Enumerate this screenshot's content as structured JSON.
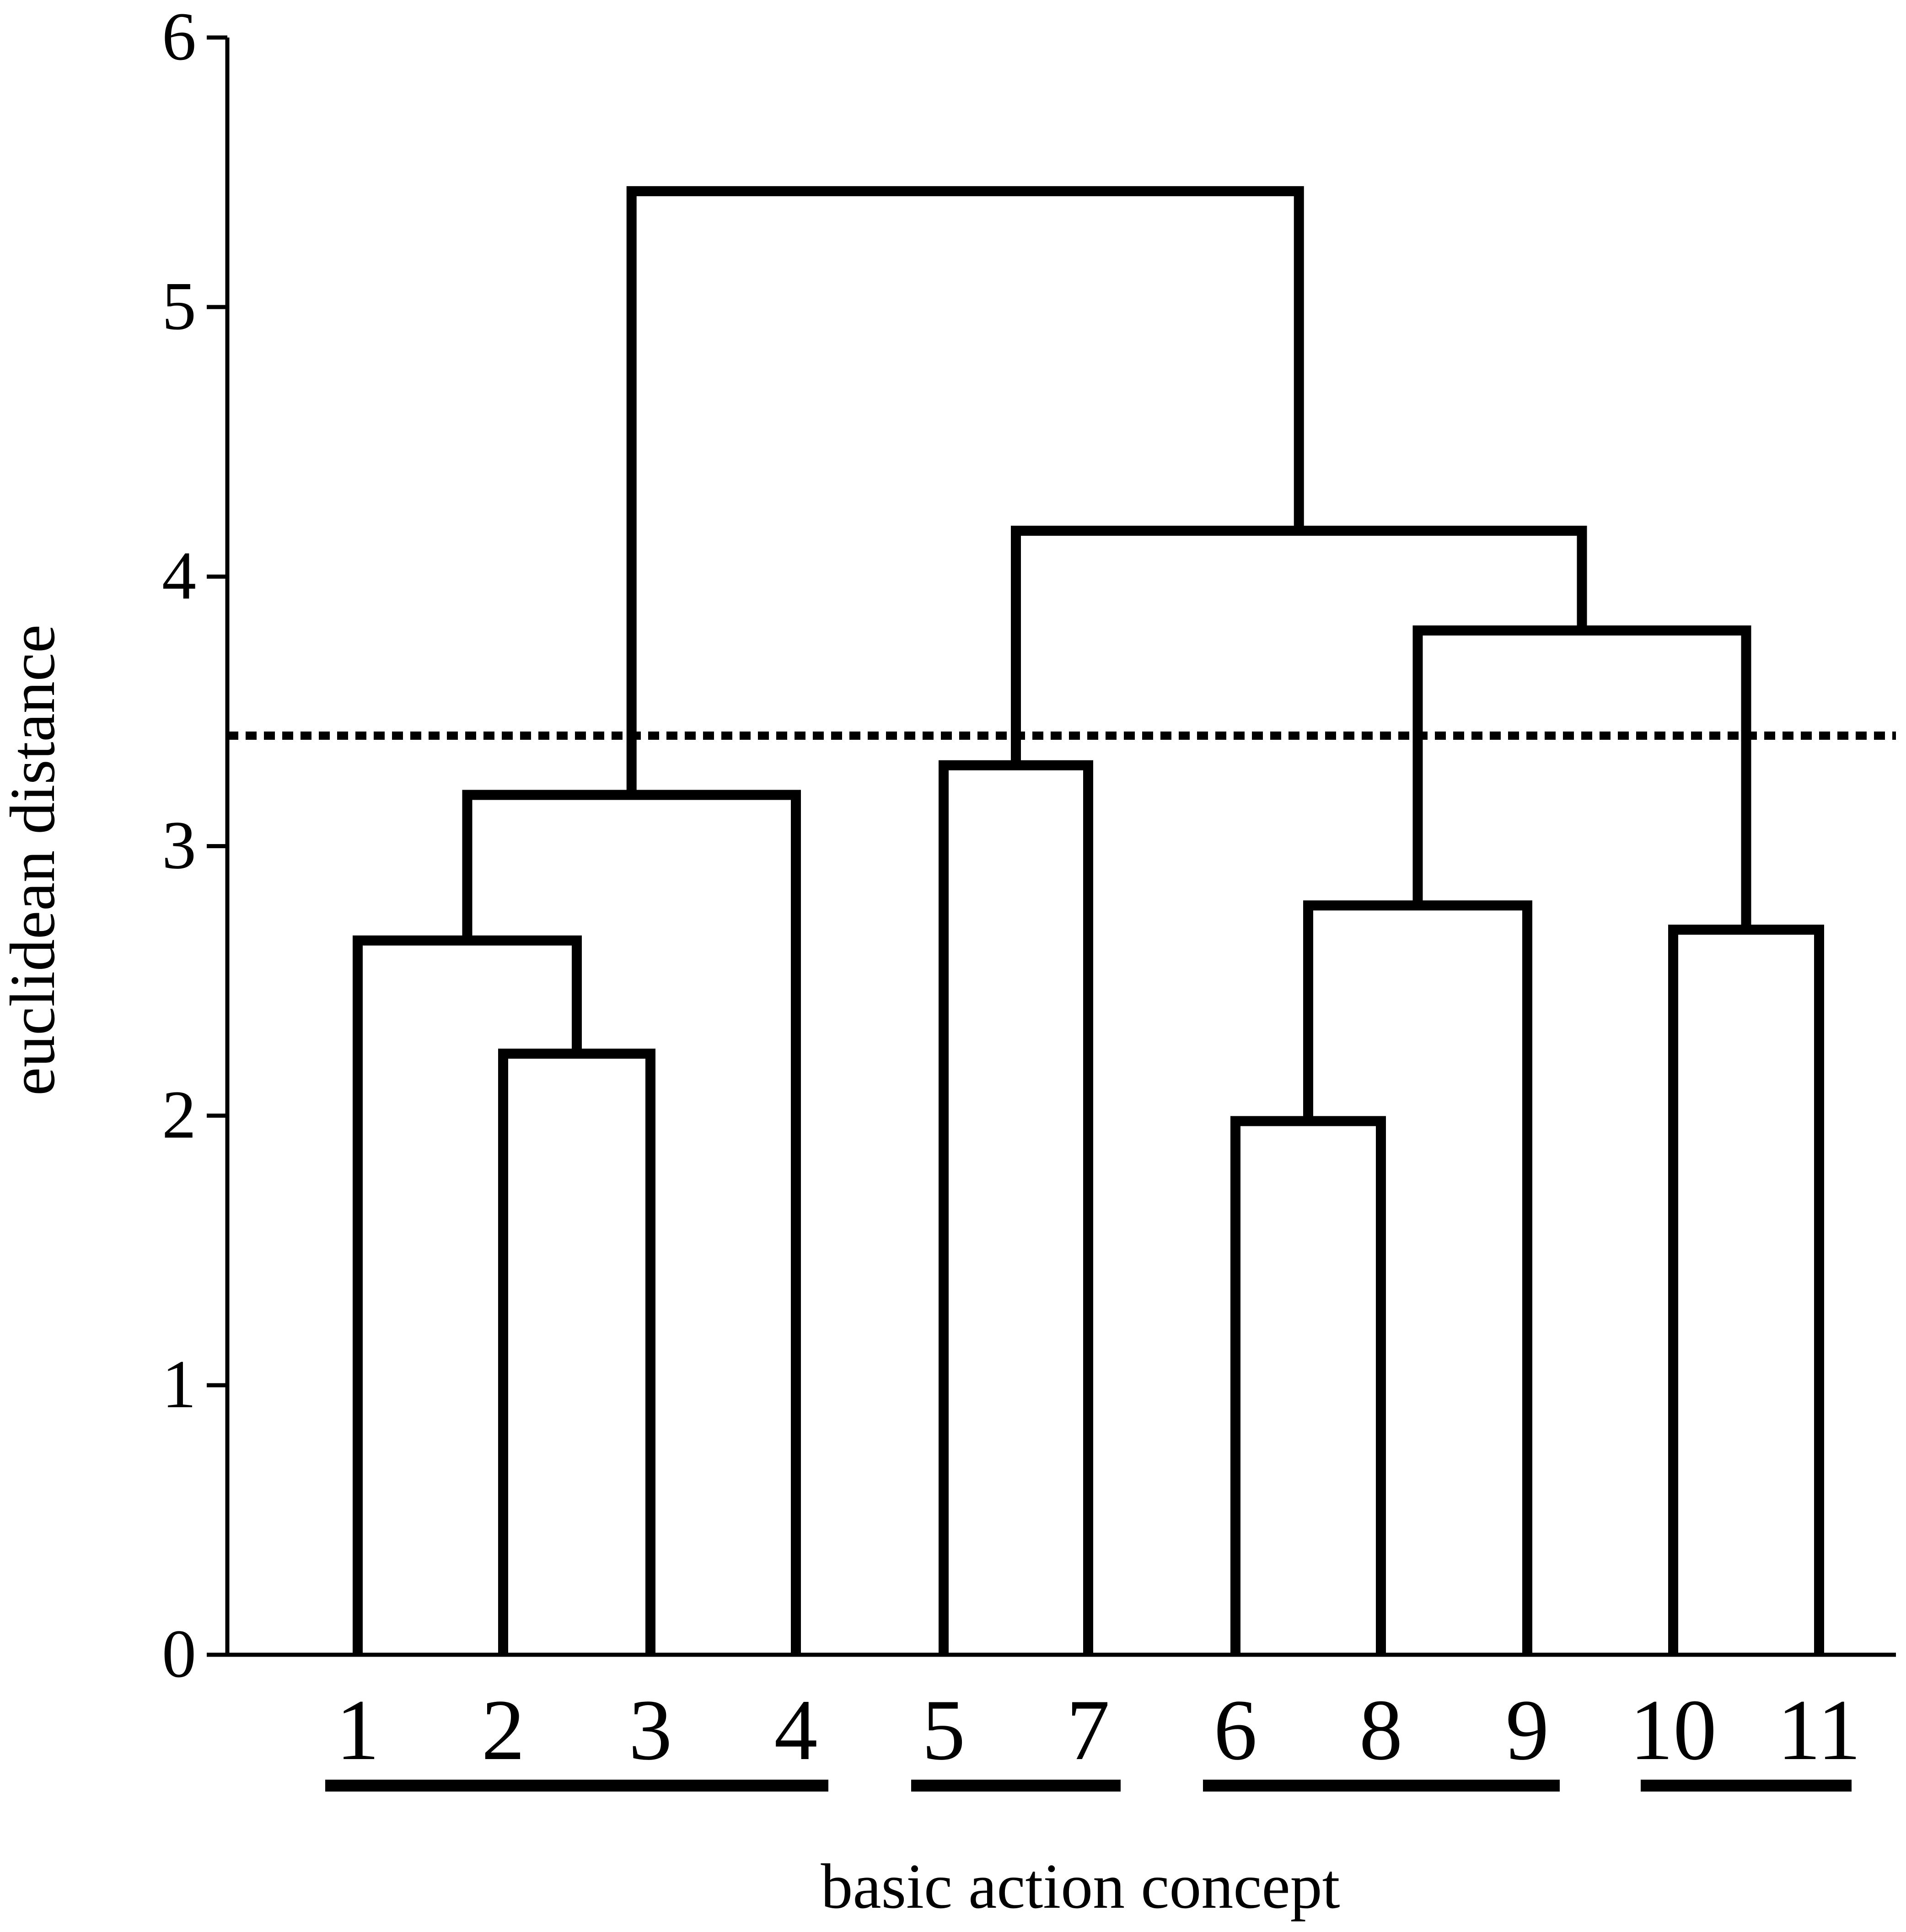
{
  "chart_data": {
    "type": "dendrogram",
    "title": "",
    "xlabel": "basic action concept",
    "ylabel": "euclidean distance",
    "ylim": [
      0,
      6
    ],
    "yticks": [
      0,
      1,
      2,
      3,
      4,
      5,
      6
    ],
    "leaf_order": [
      "1",
      "2",
      "3",
      "4",
      "5",
      "7",
      "6",
      "8",
      "9",
      "10",
      "11"
    ],
    "merges": [
      {
        "id": "m1",
        "children": [
          "6",
          "8"
        ],
        "height": 1.98
      },
      {
        "id": "m2",
        "children": [
          "2",
          "3"
        ],
        "height": 2.23
      },
      {
        "id": "m3",
        "children": [
          "1",
          "m2"
        ],
        "height": 2.65
      },
      {
        "id": "m4",
        "children": [
          "10",
          "11"
        ],
        "height": 2.69
      },
      {
        "id": "m5",
        "children": [
          "m1",
          "9"
        ],
        "height": 2.78
      },
      {
        "id": "m6",
        "children": [
          "m3",
          "4"
        ],
        "height": 3.19
      },
      {
        "id": "m7",
        "children": [
          "5",
          "7"
        ],
        "height": 3.3
      },
      {
        "id": "m8",
        "children": [
          "m5",
          "m4"
        ],
        "height": 3.8
      },
      {
        "id": "m9",
        "children": [
          "m7",
          "m8"
        ],
        "height": 4.17
      },
      {
        "id": "m10",
        "children": [
          "m6",
          "m9"
        ],
        "height": 5.43
      }
    ],
    "cutoff": 3.41,
    "clusters": [
      [
        "1",
        "2",
        "3",
        "4"
      ],
      [
        "5",
        "7"
      ],
      [
        "6",
        "8",
        "9"
      ],
      [
        "10",
        "11"
      ]
    ],
    "grid": false,
    "colors": {
      "line": "#000000",
      "background": "#ffffff"
    }
  }
}
